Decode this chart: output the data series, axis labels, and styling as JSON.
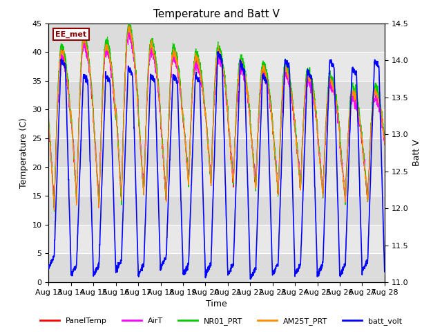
{
  "title": "Temperature and Batt V",
  "xlabel": "Time",
  "ylabel_left": "Temperature (C)",
  "ylabel_right": "Batt V",
  "ylim_left": [
    0,
    45
  ],
  "ylim_right": [
    11.0,
    14.5
  ],
  "yticks_left": [
    0,
    5,
    10,
    15,
    20,
    25,
    30,
    35,
    40,
    45
  ],
  "yticks_right": [
    11.0,
    11.5,
    12.0,
    12.5,
    13.0,
    13.5,
    14.0,
    14.5
  ],
  "num_days": 15,
  "annotation_text": "EE_met",
  "annotation_box_color": "#8B0000",
  "bg_color": "#DCDCDC",
  "bg_band_colors": [
    "#DCDCDC",
    "#E8E8E8"
  ],
  "series": [
    {
      "name": "PanelTemp",
      "color": "#FF0000"
    },
    {
      "name": "AirT",
      "color": "#FF00FF"
    },
    {
      "name": "NR01_PRT",
      "color": "#00CC00"
    },
    {
      "name": "AM25T_PRT",
      "color": "#FF8C00"
    },
    {
      "name": "batt_volt",
      "color": "#0000FF"
    }
  ],
  "xtick_labels": [
    "Aug 13",
    "Aug 14",
    "Aug 15",
    "Aug 16",
    "Aug 17",
    "Aug 18",
    "Aug 19",
    "Aug 20",
    "Aug 21",
    "Aug 22",
    "Aug 23",
    "Aug 24",
    "Aug 25",
    "Aug 26",
    "Aug 27",
    "Aug 28"
  ]
}
